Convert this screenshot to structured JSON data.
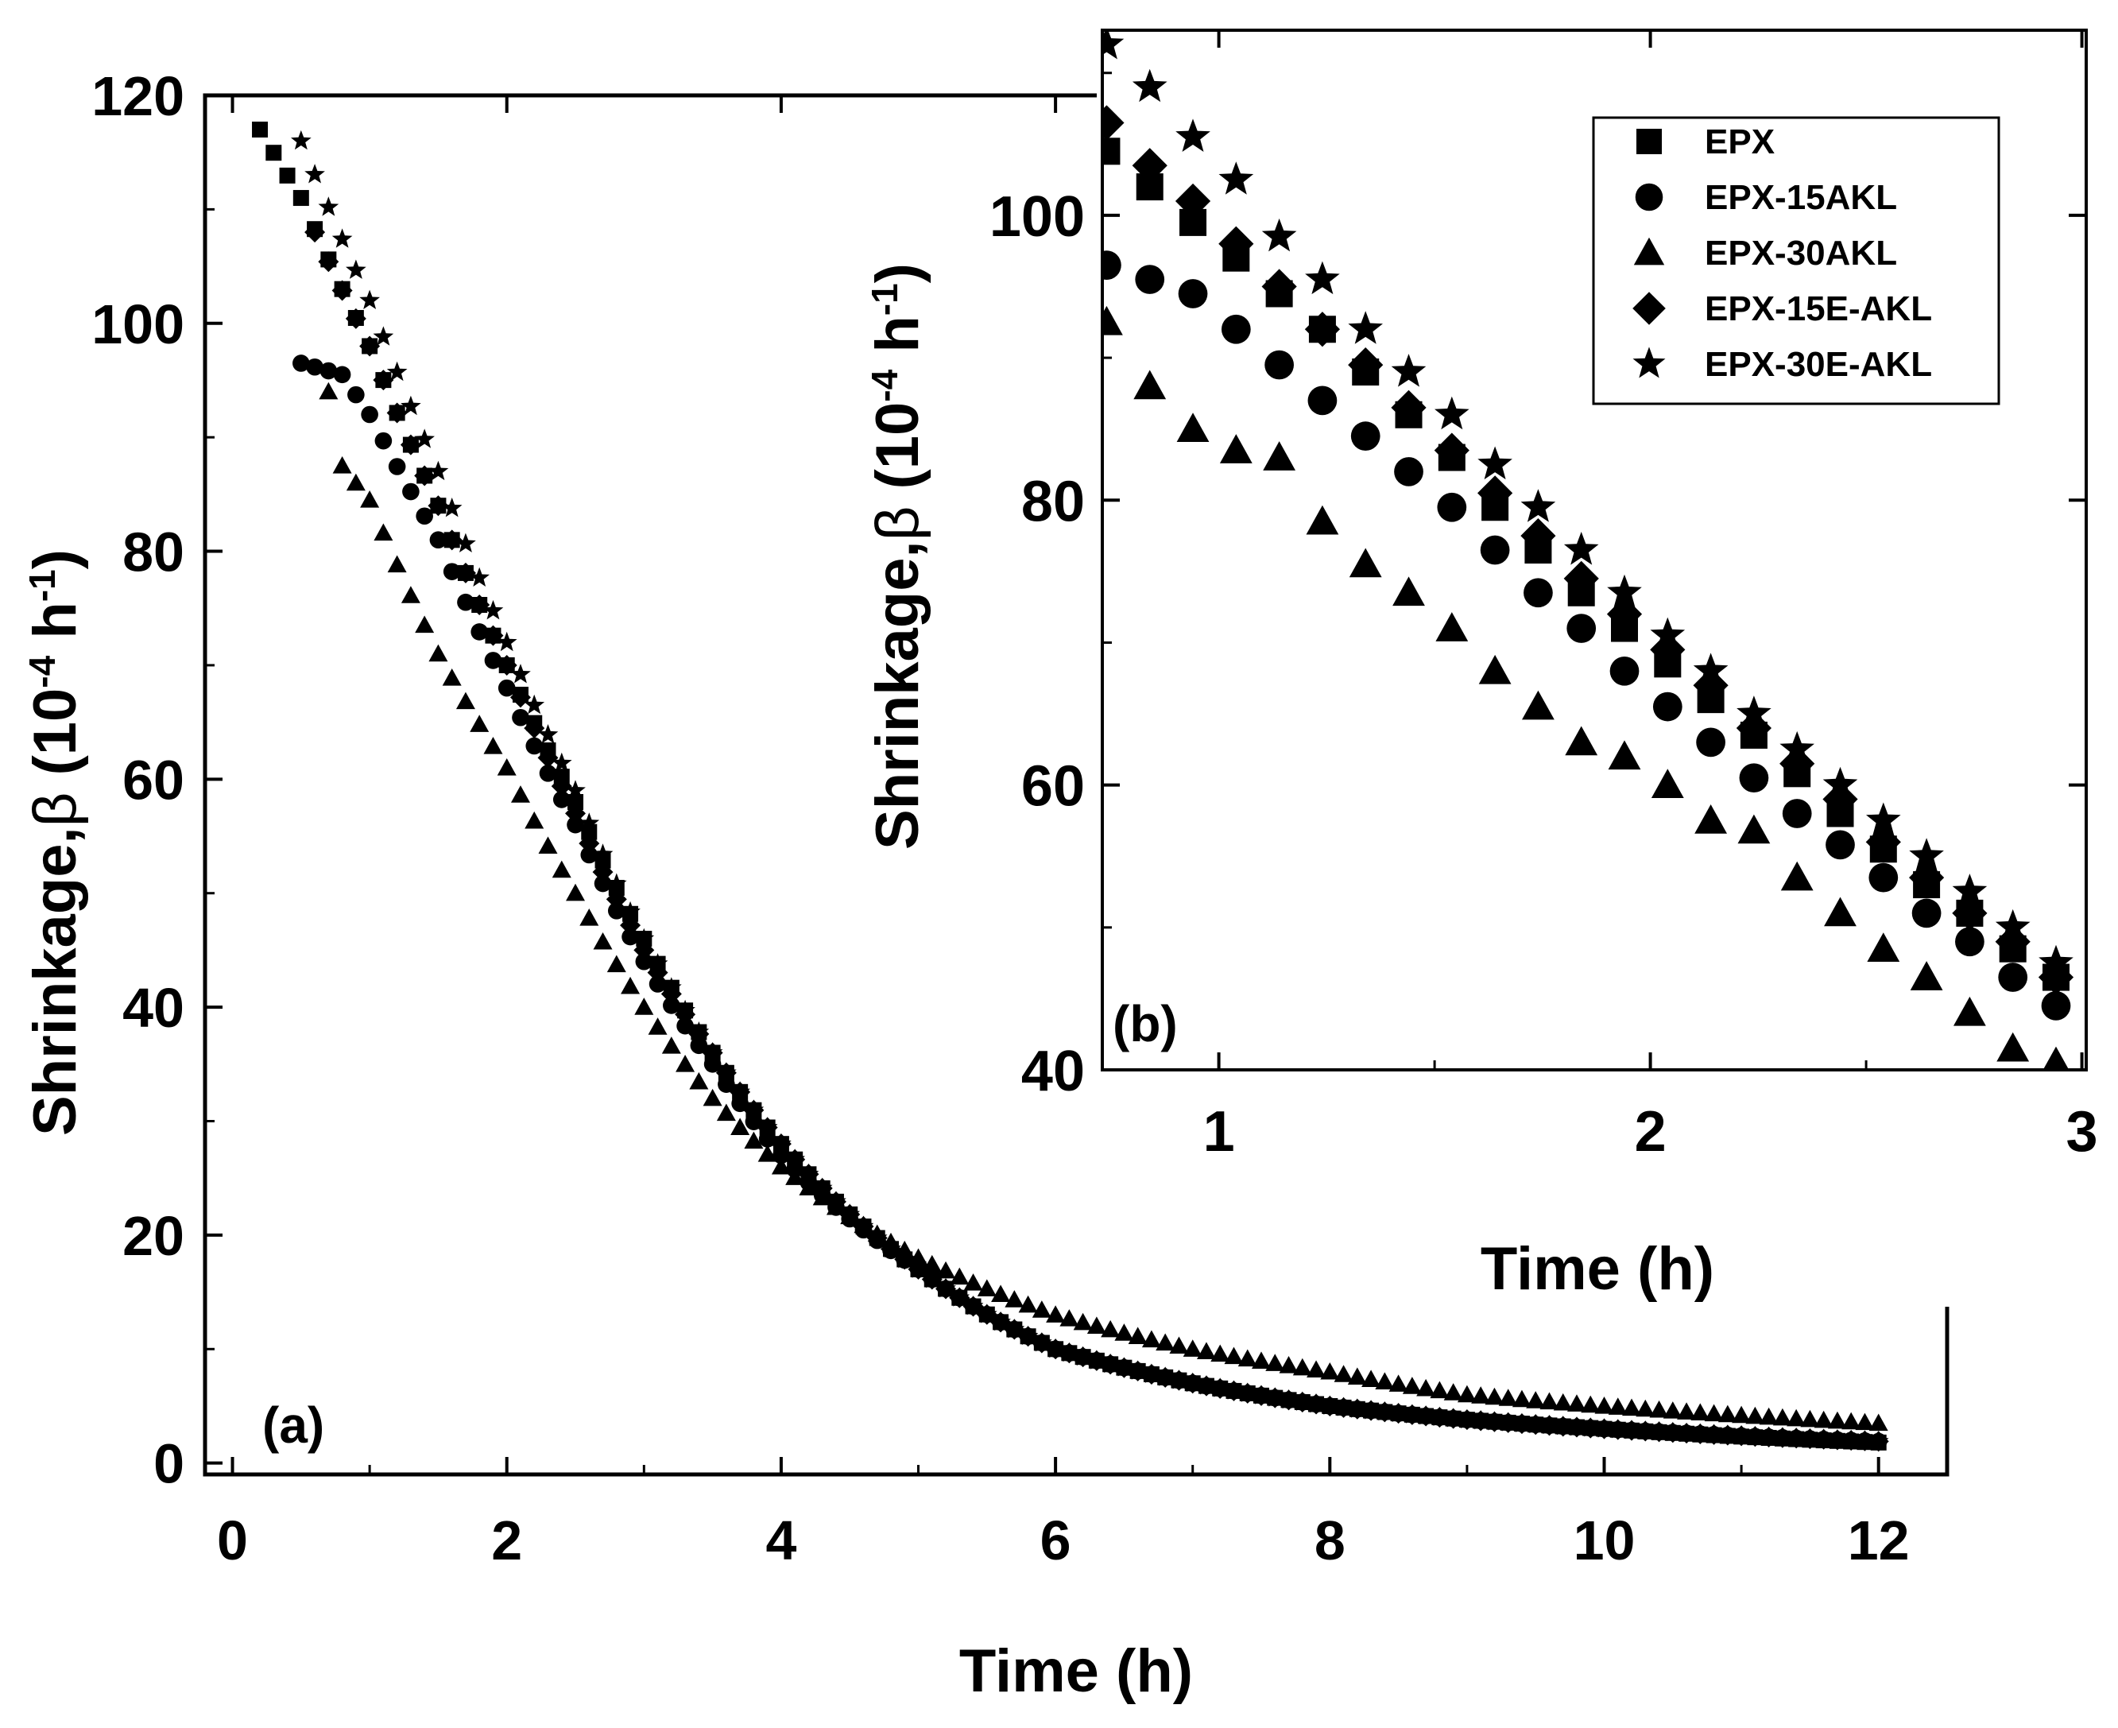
{
  "colors": {
    "background": "#ffffff",
    "ink": "#000000"
  },
  "chart_data": [
    {
      "panel": "main",
      "type": "scatter",
      "panel_label": "(a)",
      "xlabel": "Time (h)",
      "ylabel_prefix": "Shrinkage,",
      "ylabel_symbol": "β",
      "ylabel_unit": "(10",
      "ylabel_exp1": "-4",
      "ylabel_mid": " h",
      "ylabel_exp2": "-1",
      "ylabel_close": ")",
      "xlim": [
        -0.2,
        12.5
      ],
      "ylim": [
        -1,
        120
      ],
      "xticks": [
        "0",
        "2",
        "4",
        "6",
        "8",
        "10",
        "12"
      ],
      "xtick_values": [
        0,
        2,
        4,
        6,
        8,
        10,
        12
      ],
      "yticks": [
        "0",
        "20",
        "40",
        "60",
        "80",
        "100",
        "120"
      ],
      "ytick_values": [
        0,
        20,
        40,
        60,
        80,
        100,
        120
      ],
      "decay_model": {
        "note": "Points plotted every 0.1 h from start to 12 h; values follow a smooth decay between listed anchors",
        "series": [
          {
            "name": "EPX",
            "marker": "square",
            "start": 0.2,
            "anchors": [
              [
                0.2,
                117
              ],
              [
                0.5,
                111
              ],
              [
                1.0,
                98
              ],
              [
                1.5,
                84
              ],
              [
                2.0,
                70
              ],
              [
                2.5,
                58
              ],
              [
                3.0,
                46
              ],
              [
                3.5,
                36
              ],
              [
                4.0,
                28
              ],
              [
                5.0,
                17
              ],
              [
                6.0,
                10
              ],
              [
                7.0,
                7
              ],
              [
                8.0,
                5
              ],
              [
                9.0,
                3.8
              ],
              [
                10.0,
                3
              ],
              [
                12.0,
                1.8
              ]
            ]
          },
          {
            "name": "EPX-15AKL",
            "marker": "circle",
            "start": 0.5,
            "anchors": [
              [
                0.5,
                96.5
              ],
              [
                0.8,
                95.5
              ],
              [
                1.0,
                92
              ],
              [
                1.5,
                81
              ],
              [
                2.0,
                68
              ],
              [
                2.5,
                56
              ],
              [
                3.0,
                44
              ],
              [
                3.5,
                35
              ],
              [
                4.0,
                27
              ],
              [
                5.0,
                17
              ],
              [
                6.0,
                10
              ],
              [
                7.0,
                7
              ],
              [
                8.0,
                5
              ],
              [
                9.0,
                3.8
              ],
              [
                10.0,
                3
              ],
              [
                12.0,
                1.9
              ]
            ]
          },
          {
            "name": "EPX-30AKL",
            "marker": "triangle",
            "start": 0.7,
            "anchors": [
              [
                0.7,
                94
              ],
              [
                0.8,
                87.5
              ],
              [
                1.0,
                84.5
              ],
              [
                1.5,
                71
              ],
              [
                2.0,
                61
              ],
              [
                2.5,
                50
              ],
              [
                3.0,
                40
              ],
              [
                3.5,
                32
              ],
              [
                4.0,
                26
              ],
              [
                5.0,
                18
              ],
              [
                6.0,
                13
              ],
              [
                7.0,
                10
              ],
              [
                8.0,
                8
              ],
              [
                9.0,
                6
              ],
              [
                10.0,
                5
              ],
              [
                12.0,
                3.5
              ]
            ]
          },
          {
            "name": "EPX-15E-AKL",
            "marker": "diamond",
            "start": 0.6,
            "anchors": [
              [
                0.6,
                108
              ],
              [
                1.0,
                98
              ],
              [
                1.5,
                84
              ],
              [
                2.0,
                70
              ],
              [
                2.5,
                57
              ],
              [
                3.0,
                45
              ],
              [
                3.5,
                36
              ],
              [
                4.0,
                28
              ],
              [
                5.0,
                17
              ],
              [
                6.0,
                10
              ],
              [
                7.0,
                7
              ],
              [
                8.0,
                5
              ],
              [
                9.0,
                3.8
              ],
              [
                10.0,
                3
              ],
              [
                12.0,
                1.9
              ]
            ]
          },
          {
            "name": "EPX-30E-AKL",
            "marker": "star",
            "start": 0.5,
            "anchors": [
              [
                0.5,
                116
              ],
              [
                1.0,
                102
              ],
              [
                1.5,
                87
              ],
              [
                2.0,
                72
              ],
              [
                2.5,
                59
              ],
              [
                3.0,
                46
              ],
              [
                3.5,
                36
              ],
              [
                4.0,
                28
              ],
              [
                5.0,
                17
              ],
              [
                6.0,
                10
              ],
              [
                7.0,
                7
              ],
              [
                8.0,
                5
              ],
              [
                9.0,
                3.8
              ],
              [
                10.0,
                3
              ],
              [
                12.0,
                1.9
              ]
            ]
          }
        ]
      }
    },
    {
      "panel": "inset",
      "type": "scatter",
      "panel_label": "(b)",
      "xlabel": "Time (h)",
      "ylabel_prefix": "Shrinkage,",
      "ylabel_symbol": "β",
      "ylabel_unit": "(10",
      "ylabel_exp1": "-4",
      "ylabel_mid": " h",
      "ylabel_exp2": "-1",
      "ylabel_close": ")",
      "xlim": [
        0.73,
        3.01
      ],
      "ylim": [
        40,
        113
      ],
      "xticks": [
        "1",
        "2",
        "3"
      ],
      "xtick_values": [
        1,
        2,
        3
      ],
      "yticks": [
        "40",
        "60",
        "80",
        "100"
      ],
      "ytick_values": [
        40,
        60,
        80,
        100
      ],
      "legend": [
        "EPX",
        "EPX-15AKL",
        "EPX-30AKL",
        "EPX-15E-AKL",
        "EPX-30E-AKL"
      ],
      "legend_position": "top-right",
      "x": [
        0.74,
        0.84,
        0.94,
        1.04,
        1.14,
        1.24,
        1.34,
        1.44,
        1.54,
        1.64,
        1.74,
        1.84,
        1.94,
        2.04,
        2.14,
        2.24,
        2.34,
        2.44,
        2.54,
        2.64,
        2.74,
        2.84,
        2.94
      ],
      "series": [
        {
          "name": "EPX",
          "marker": "square",
          "values": [
            104.5,
            102.0,
            99.5,
            97.0,
            94.5,
            92.0,
            89.0,
            86.0,
            83.0,
            79.5,
            76.5,
            73.5,
            71.0,
            68.5,
            66.0,
            63.5,
            60.8,
            58.0,
            55.5,
            53.0,
            51.0,
            48.5,
            46.5
          ]
        },
        {
          "name": "EPX-15AKL",
          "marker": "circle",
          "values": [
            96.5,
            95.5,
            94.5,
            92.0,
            89.5,
            87.0,
            84.5,
            82.0,
            79.5,
            76.5,
            73.5,
            71.0,
            68.0,
            65.5,
            63.0,
            60.5,
            58.0,
            55.8,
            53.5,
            51.0,
            49.0,
            46.5,
            44.5
          ]
        },
        {
          "name": "EPX-30AKL",
          "marker": "triangle",
          "values": [
            92.5,
            88.0,
            85.0,
            83.5,
            83.0,
            78.5,
            75.5,
            73.5,
            71.0,
            68.0,
            65.5,
            63.0,
            62.0,
            60.0,
            57.5,
            56.8,
            53.5,
            51.0,
            48.5,
            46.5,
            44.0,
            41.5,
            40.5
          ]
        },
        {
          "name": "EPX-15E-AKL",
          "marker": "diamond",
          "values": [
            106.5,
            103.5,
            101.0,
            98.0,
            95.0,
            92.0,
            89.5,
            86.5,
            83.5,
            80.5,
            77.5,
            74.5,
            72.0,
            69.5,
            67.0,
            64.0,
            61.5,
            59.0,
            56.0,
            53.5,
            51.0,
            49.0,
            46.5
          ]
        },
        {
          "name": "EPX-30E-AKL",
          "marker": "star",
          "values": [
            112.0,
            109.0,
            105.5,
            102.5,
            98.5,
            95.5,
            92.0,
            89.0,
            86.0,
            82.5,
            79.5,
            76.5,
            73.5,
            70.5,
            68.0,
            65.0,
            62.5,
            60.0,
            57.5,
            55.0,
            52.5,
            50.0,
            47.5
          ]
        }
      ]
    }
  ]
}
